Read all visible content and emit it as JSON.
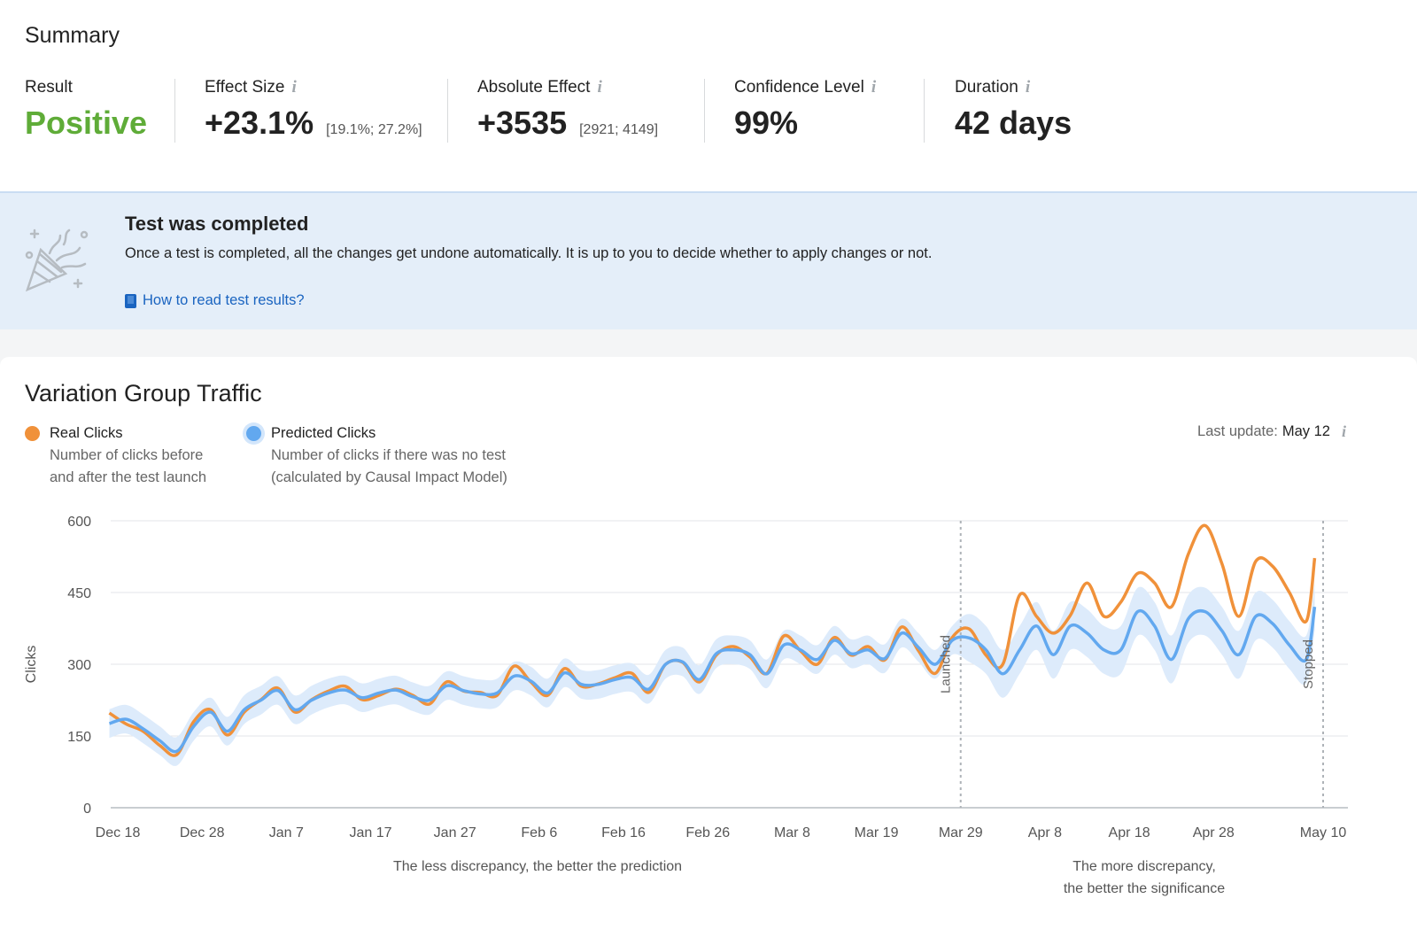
{
  "summary": {
    "title": "Summary",
    "metrics": [
      {
        "label": "Result",
        "value": "Positive",
        "color": "#5fac38"
      },
      {
        "label": "Effect Size",
        "value": "+23.1%",
        "interval": "[19.1%; 27.2%]",
        "info": "i"
      },
      {
        "label": "Absolute Effect",
        "value": "+3535",
        "interval": "[2921; 4149]",
        "info": "i"
      },
      {
        "label": "Confidence Level",
        "value": "99%",
        "info": "i"
      },
      {
        "label": "Duration",
        "value": "42 days",
        "info": "i"
      }
    ]
  },
  "banner": {
    "icon": "party-popper-icon",
    "title": "Test was completed",
    "text": "Once a test is completed, all the changes get undone automatically. It is up to you to decide whether to apply changes or not.",
    "link_icon": "book-icon",
    "link": "How to read test results?"
  },
  "traffic": {
    "title": "Variation Group Traffic",
    "legend": [
      {
        "name": "Real Clicks",
        "desc1": "Number of clicks before",
        "desc2": "and after the test launch",
        "color": "#f0913a"
      },
      {
        "name": "Predicted Clicks",
        "desc1": "Number of clicks if there was no test",
        "desc2": "(calculated by Causal Impact Model)",
        "color": "#62a8ef"
      }
    ],
    "last_update_label": "Last update:",
    "last_update": "May 12",
    "info": "i",
    "notes": {
      "left": "The less discrepancy, the better the prediction",
      "right1": "The more discrepancy,",
      "right2": "the better the significance"
    }
  },
  "chart_data": {
    "type": "line",
    "ylabel": "Clicks",
    "ylim": [
      0,
      600
    ],
    "yticks": [
      0,
      150,
      300,
      450,
      600
    ],
    "xlim": [
      "2021-12-18",
      "2022-05-10"
    ],
    "xticks": [
      {
        "date": "2021-12-18",
        "label": "Dec 18"
      },
      {
        "date": "2021-12-28",
        "label": "Dec 28"
      },
      {
        "date": "2022-01-07",
        "label": "Jan 7"
      },
      {
        "date": "2022-01-17",
        "label": "Jan 17"
      },
      {
        "date": "2022-01-27",
        "label": "Jan 27"
      },
      {
        "date": "2022-02-06",
        "label": "Feb 6"
      },
      {
        "date": "2022-02-16",
        "label": "Feb 16"
      },
      {
        "date": "2022-02-26",
        "label": "Feb 26"
      },
      {
        "date": "2022-03-08",
        "label": "Mar 8"
      },
      {
        "date": "2022-03-18",
        "label": "Mar 19"
      },
      {
        "date": "2022-03-28",
        "label": "Mar 29"
      },
      {
        "date": "2022-04-07",
        "label": "Apr 8"
      },
      {
        "date": "2022-04-17",
        "label": "Apr 18"
      },
      {
        "date": "2022-04-27",
        "label": "Apr 28"
      },
      {
        "date": "2022-05-10",
        "label": "May 10"
      }
    ],
    "grid": true,
    "markers": [
      {
        "date": "2022-03-28",
        "label": "Launched"
      },
      {
        "date": "2022-05-10",
        "label": "Stopped"
      }
    ],
    "x": [
      "2021-12-17",
      "2021-12-19",
      "2021-12-21",
      "2021-12-23",
      "2021-12-25",
      "2021-12-27",
      "2021-12-29",
      "2021-12-31",
      "2022-01-02",
      "2022-01-04",
      "2022-01-06",
      "2022-01-08",
      "2022-01-10",
      "2022-01-12",
      "2022-01-14",
      "2022-01-16",
      "2022-01-18",
      "2022-01-20",
      "2022-01-22",
      "2022-01-24",
      "2022-01-26",
      "2022-01-28",
      "2022-01-30",
      "2022-02-01",
      "2022-02-03",
      "2022-02-05",
      "2022-02-07",
      "2022-02-09",
      "2022-02-11",
      "2022-02-13",
      "2022-02-15",
      "2022-02-17",
      "2022-02-19",
      "2022-02-21",
      "2022-02-23",
      "2022-02-25",
      "2022-02-27",
      "2022-03-01",
      "2022-03-03",
      "2022-03-05",
      "2022-03-07",
      "2022-03-09",
      "2022-03-11",
      "2022-03-13",
      "2022-03-15",
      "2022-03-17",
      "2022-03-19",
      "2022-03-21",
      "2022-03-23",
      "2022-03-25",
      "2022-03-27",
      "2022-03-29",
      "2022-03-31",
      "2022-04-02",
      "2022-04-04",
      "2022-04-06",
      "2022-04-08",
      "2022-04-10",
      "2022-04-12",
      "2022-04-14",
      "2022-04-16",
      "2022-04-18",
      "2022-04-20",
      "2022-04-22",
      "2022-04-24",
      "2022-04-26",
      "2022-04-28",
      "2022-04-30",
      "2022-05-02",
      "2022-05-04",
      "2022-05-06",
      "2022-05-08",
      "2022-05-09"
    ],
    "series": [
      {
        "name": "Real Clicks",
        "color": "#f0913a",
        "values": [
          198,
          175,
          160,
          130,
          111,
          180,
          205,
          152,
          200,
          226,
          250,
          200,
          226,
          244,
          254,
          226,
          235,
          248,
          235,
          217,
          263,
          244,
          241,
          235,
          296,
          263,
          235,
          291,
          254,
          259,
          272,
          281,
          241,
          300,
          304,
          263,
          319,
          337,
          315,
          281,
          359,
          328,
          300,
          356,
          319,
          337,
          309,
          378,
          328,
          281,
          356,
          374,
          319,
          300,
          445,
          400,
          365,
          402,
          470,
          400,
          430,
          490,
          470,
          420,
          530,
          590,
          510,
          400,
          515,
          505,
          450,
          390,
          522
        ]
      },
      {
        "name": "Predicted Clicks",
        "color": "#62a8ef",
        "values": [
          176,
          185,
          165,
          140,
          118,
          170,
          200,
          160,
          205,
          225,
          245,
          205,
          225,
          240,
          246,
          230,
          240,
          246,
          232,
          225,
          255,
          245,
          238,
          240,
          275,
          265,
          240,
          282,
          258,
          258,
          268,
          272,
          248,
          300,
          305,
          268,
          322,
          330,
          320,
          280,
          340,
          330,
          310,
          350,
          322,
          330,
          312,
          365,
          335,
          300,
          350,
          355,
          330,
          280,
          330,
          380,
          320,
          380,
          365,
          330,
          330,
          410,
          380,
          310,
          395,
          410,
          370,
          320,
          400,
          385,
          340,
          310,
          420
        ]
      }
    ],
    "predicted_interval_halfwidth": {
      "before_launch": 30,
      "after_launch": 50
    },
    "band_color": "#ddebfb"
  }
}
